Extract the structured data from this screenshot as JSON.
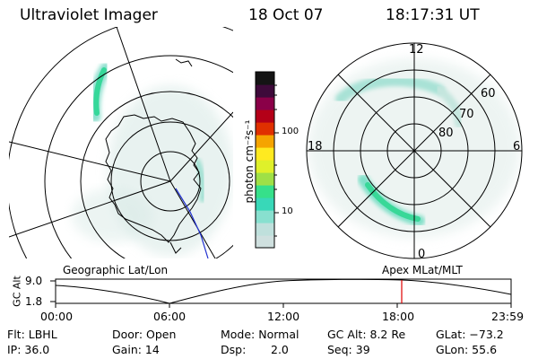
{
  "header": {
    "instrument": "Ultraviolet Imager",
    "date": "18 Oct 07",
    "time": "18:17:31 UT"
  },
  "left_panel": {
    "caption": "Geographic Lat/Lon"
  },
  "right_panel": {
    "caption": "Apex MLat/MLT",
    "mlt_labels": [
      "12",
      "18",
      "6",
      "0"
    ],
    "lat_labels": [
      "60",
      "70",
      "80"
    ]
  },
  "colorbar": {
    "unit_label": "photon cm⁻²s⁻¹",
    "ticks": [
      "100",
      "10"
    ],
    "colors": [
      "#cfe0df",
      "#bfe0dc",
      "#88e0cf",
      "#38d8b8",
      "#36e08a",
      "#9fe046",
      "#dff02a",
      "#ffea20",
      "#f5a400",
      "#e03000",
      "#b40018",
      "#8a0048",
      "#3e0a3a",
      "#141414"
    ]
  },
  "altitude_plot": {
    "ylabel": "GC Alt",
    "y_ticks": [
      "9.0",
      "1.8"
    ],
    "x_ticks": [
      "00:00",
      "06:00",
      "12:00",
      "18:00",
      "23:59"
    ],
    "marker_color": "#e00000"
  },
  "status": {
    "flt": "Flt: LBHL",
    "ip": "IP: 36.0",
    "door": "Door: Open",
    "gain": "Gain: 14",
    "mode": "Mode: Normal",
    "dsp_label": "Dsp:",
    "dsp_value": "2.0",
    "gc_alt": "GC Alt: 8.2 Re",
    "seq": "Seq: 39",
    "glat": "GLat: −73.2",
    "glon": "GLon:  55.6"
  }
}
